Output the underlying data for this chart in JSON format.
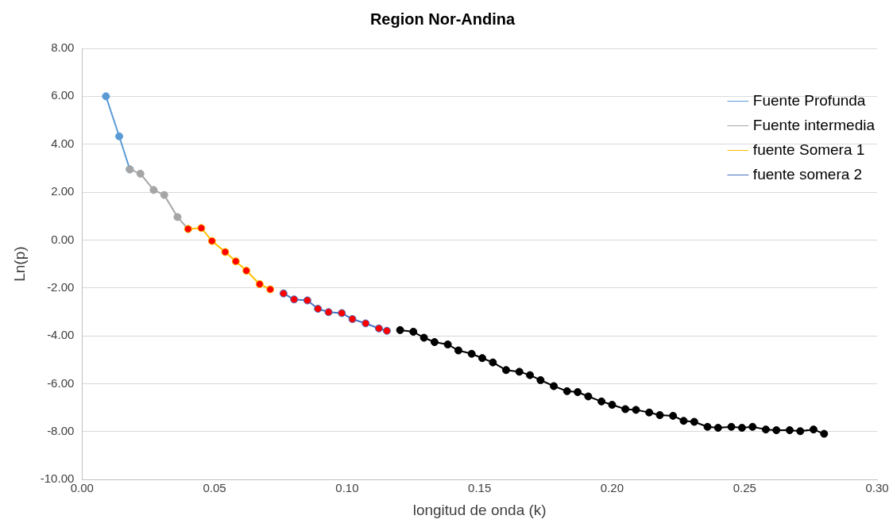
{
  "chart_data": {
    "type": "line",
    "title": "Region Nor-Andina",
    "xlabel": "longitud de onda (k)",
    "ylabel": "Ln(p)",
    "xlim": [
      0,
      0.3
    ],
    "xticks": [
      {
        "value": 0,
        "label": "0.00"
      },
      {
        "value": 0.05,
        "label": "0.05"
      },
      {
        "value": 0.1,
        "label": "0.10"
      },
      {
        "value": 0.15,
        "label": "0.15"
      },
      {
        "value": 0.2,
        "label": "0.20"
      },
      {
        "value": 0.25,
        "label": "0.25"
      },
      {
        "value": 0.3,
        "label": "0.30"
      }
    ],
    "ylim": [
      -10,
      8
    ],
    "yticks": [
      {
        "value": -10,
        "label": "-10.00"
      },
      {
        "value": -8,
        "label": "-8.00"
      },
      {
        "value": -6,
        "label": "-6.00"
      },
      {
        "value": -4,
        "label": "-4.00"
      },
      {
        "value": -2,
        "label": "-2.00"
      },
      {
        "value": 0,
        "label": "0.00"
      },
      {
        "value": 2,
        "label": "2.00"
      },
      {
        "value": 4,
        "label": "4.00"
      },
      {
        "value": 6,
        "label": "6.00"
      },
      {
        "value": 8,
        "label": "8.00"
      }
    ],
    "grid": "y",
    "legend": "top right",
    "marker": "circle",
    "line_style": "solid",
    "series": [
      {
        "name": "Fuente Profunda",
        "color": "#5b9bd5",
        "x": [
          0.009,
          0.014,
          0.018
        ],
        "values": [
          6.0,
          4.33,
          2.95
        ]
      },
      {
        "name": "Fuente intermedia",
        "color": "#a5a5a5",
        "x": [
          0.018,
          0.022,
          0.027,
          0.031,
          0.036,
          0.04
        ],
        "values": [
          2.95,
          2.77,
          2.09,
          1.88,
          0.96,
          0.46
        ]
      },
      {
        "name": "fuente Somera 1",
        "color": "#ffc000",
        "colors": [
          "#ff0000",
          "#ff0000",
          "#ff0000",
          "#ff0000",
          "#ff0000",
          "#ff0000",
          "#ff0000",
          "#ff0000"
        ],
        "x": [
          0.04,
          0.045,
          0.049,
          0.054,
          0.058,
          0.062,
          0.067,
          0.071
        ],
        "values": [
          0.46,
          0.5,
          -0.04,
          -0.5,
          -0.89,
          -1.28,
          -1.84,
          -2.06
        ]
      },
      {
        "name": "fuente somera 2",
        "color": "#4472c4",
        "colors": [
          "#ff0000",
          "#ff0000",
          "#ff0000",
          "#ff0000",
          "#ff0000",
          "#ff0000",
          "#ff0000",
          "#ff0000",
          "#ff0000",
          "#ff0000"
        ],
        "x": [
          0.076,
          0.08,
          0.085,
          0.089,
          0.093,
          0.098,
          0.102,
          0.107,
          0.112,
          0.115
        ],
        "values": [
          -2.23,
          -2.48,
          -2.52,
          -2.87,
          -3.01,
          -3.05,
          -3.3,
          -3.48,
          -3.69,
          -3.79
        ]
      },
      {
        "color": "#000000",
        "x": [
          0.12,
          0.125,
          0.129,
          0.133,
          0.138,
          0.142,
          0.147,
          0.151,
          0.155,
          0.16,
          0.165,
          0.169,
          0.173,
          0.178,
          0.183,
          0.187,
          0.191,
          0.196,
          0.2,
          0.205,
          0.209,
          0.214,
          0.218,
          0.223,
          0.227,
          0.231,
          0.236,
          0.24,
          0.245,
          0.249,
          0.253,
          0.258,
          0.262,
          0.267,
          0.271,
          0.276,
          0.28
        ],
        "values": [
          -3.76,
          -3.83,
          -4.08,
          -4.26,
          -4.36,
          -4.61,
          -4.75,
          -4.93,
          -5.11,
          -5.43,
          -5.5,
          -5.64,
          -5.85,
          -6.1,
          -6.31,
          -6.35,
          -6.53,
          -6.74,
          -6.88,
          -7.06,
          -7.09,
          -7.2,
          -7.31,
          -7.34,
          -7.55,
          -7.59,
          -7.8,
          -7.84,
          -7.8,
          -7.84,
          -7.8,
          -7.91,
          -7.94,
          -7.94,
          -7.98,
          -7.91,
          -8.09
        ]
      }
    ]
  }
}
